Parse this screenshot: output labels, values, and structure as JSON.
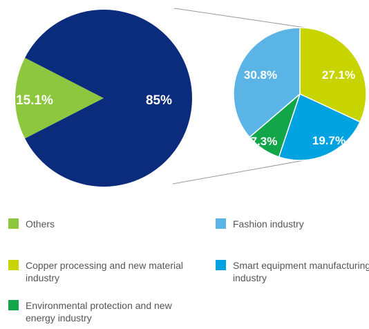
{
  "chart_data": [
    {
      "type": "pie",
      "categories": [
        "Others",
        ""
      ],
      "values": [
        15.1,
        85
      ],
      "labels": [
        "15.1%",
        "85%"
      ],
      "colors": [
        "#8dc63f",
        "#0b2b7c"
      ]
    },
    {
      "type": "pie",
      "categories": [
        "Copper processing and new material industry",
        "Smart equipment manufacturing industry",
        "Environmental protection and new energy industry",
        "Fashion industry"
      ],
      "values": [
        27.1,
        19.7,
        7.3,
        30.8
      ],
      "labels": [
        "27.1%",
        "19.7%",
        "7.3%",
        "30.8%"
      ],
      "colors": [
        "#c8d400",
        "#00a3e0",
        "#12a54a",
        "#5ab4e5"
      ]
    }
  ],
  "legend": [
    {
      "label": "Others",
      "color": "#8dc63f"
    },
    {
      "label": "Fashion industry",
      "color": "#5ab4e5"
    },
    {
      "label": "Copper processing and new material industry",
      "color": "#c8d400"
    },
    {
      "label": "Smart equipment manufacturing industry",
      "color": "#00a3e0"
    },
    {
      "label": "Environmental protection and new energy industry",
      "color": "#12a54a"
    }
  ]
}
